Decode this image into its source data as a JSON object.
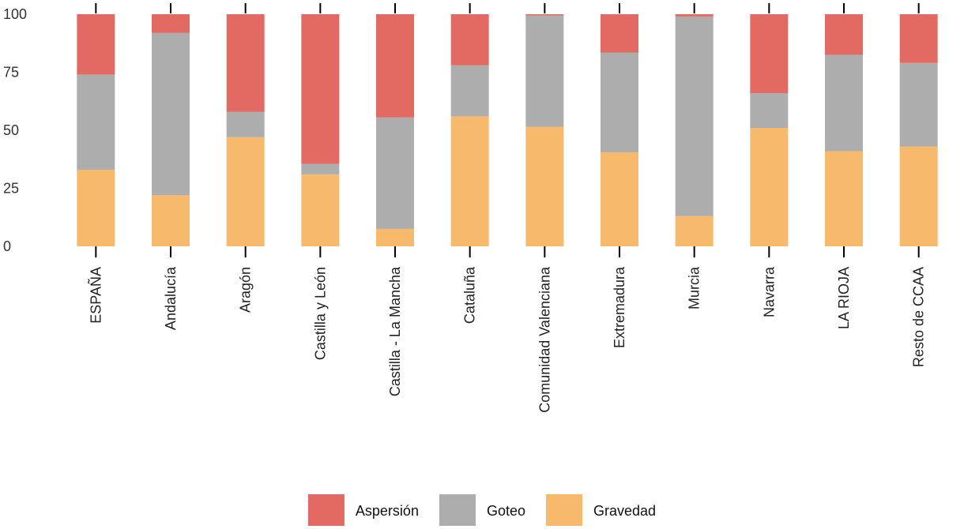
{
  "chart_data": {
    "type": "bar",
    "stacked": true,
    "categories": [
      "ESPAÑA",
      "Andalucía",
      "Aragón",
      "Castilla y León",
      "Castilla - La Mancha",
      "Cataluña",
      "Comunidad Valenciana",
      "Extremadura",
      "Murcia",
      "Navarra",
      "LA RIOJA",
      "Resto de CCAA"
    ],
    "series": [
      {
        "name": "Gravedad",
        "color": "#F7B96B",
        "values": [
          33,
          22,
          47,
          31,
          7.5,
          56,
          51.5,
          40.5,
          13,
          51,
          41,
          43
        ]
      },
      {
        "name": "Goteo",
        "color": "#ADADAD",
        "values": [
          41,
          70,
          11,
          4.5,
          48,
          22,
          48,
          43,
          86,
          15,
          41.5,
          36
        ]
      },
      {
        "name": "Aspersión",
        "color": "#E26A62",
        "values": [
          26,
          8,
          42,
          64.5,
          44.5,
          22,
          0.5,
          16.5,
          1,
          34,
          17.5,
          21
        ]
      }
    ],
    "ylim": [
      0,
      100
    ],
    "yticks": [
      "0",
      "25",
      "50",
      "75",
      "100"
    ],
    "grid": false,
    "legend": {
      "position": "bottom",
      "order": [
        "Aspersión",
        "Goteo",
        "Gravedad"
      ]
    },
    "title": "",
    "xlabel": "",
    "ylabel": ""
  }
}
